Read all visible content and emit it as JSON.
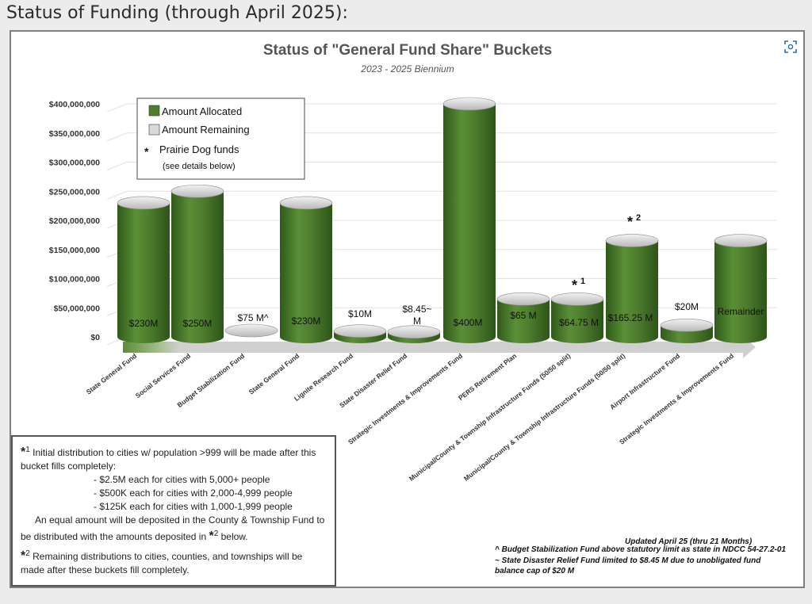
{
  "page": {
    "heading": "Status of Funding (through April 2025):"
  },
  "chart_data": {
    "type": "bar",
    "title": "Status of \"General Fund Share\" Buckets",
    "subtitle": "2023 - 2025 Biennium",
    "ylim": [
      0,
      400000000
    ],
    "yticks": [
      "$0",
      "$50,000,000",
      "$100,000,000",
      "$150,000,000",
      "$200,000,000",
      "$250,000,000",
      "$300,000,000",
      "$350,000,000",
      "$400,000,000"
    ],
    "grid": true,
    "legend_position": "top-left",
    "categories": [
      "State General Fund",
      "Social Services Fund",
      "Budget Stabilization Fund",
      "State General Fund",
      "Lignite Research Fund",
      "State Disaster Relief Fund",
      "Strategic Investments & Improvements Fund",
      "PERS Retirement Plan",
      "Municipal/County & Township Infrastructure Funds (50/50 split)",
      "Municipal/County & Township Infrastructure Funds (50/50 split)",
      "Airport Infrastructure Fund",
      "Strategic Investments & Improvements Fund"
    ],
    "series": [
      {
        "name": "Amount Allocated",
        "color": "#4e7d2e",
        "values": [
          230000000,
          250000000,
          0,
          230000000,
          10000000,
          8450000,
          400000000,
          65000000,
          64750000,
          165250000,
          20000000,
          165000000
        ]
      }
    ],
    "data_labels": [
      "$230M",
      "$250M",
      "$75 M^",
      "$230M",
      "$10M",
      "$8.45~\nM",
      "$400M",
      "$65 M",
      "$64.75 M",
      "$165.25 M",
      "$20M",
      "Remainder"
    ],
    "markers": [
      {
        "index": 8,
        "text": "*",
        "sup": "1"
      },
      {
        "index": 9,
        "text": "*",
        "sup": "2"
      }
    ],
    "legend": [
      {
        "label": "Amount Allocated",
        "color": "#4e7d2e"
      },
      {
        "label": "Amount Remaining",
        "color": "#d9d9d9"
      },
      {
        "label": "Prairie Dog funds",
        "symbol": "*",
        "note": "(see details below)"
      }
    ]
  },
  "footnotes": {
    "n1_intro": "Initial distribution to cities w/ population >999 will be made after this bucket fills completely:",
    "n1_bullets": [
      "- $2.5M each for cities with 5,000+ people",
      "- $500K each for cities with 2,000-4,999 people",
      "- $125K each for cities with 1,000-1,999 people"
    ],
    "n1_para_a": "An equal amount will be deposited in the County & Township Fund to be distributed with the amounts deposited in ",
    "n1_para_b": " below.",
    "n2_text": "Remaining distributions to cities, counties, and townships will be made after these buckets fill completely.",
    "star": "*",
    "sup1": "1",
    "sup2": "2"
  },
  "notes": {
    "updated": "Updated April 25 (thru 21 Months)",
    "caret_note": "^ Budget Stabilization Fund above statutory limit as state in NDCC 54-27.2-01",
    "tilde_note": "~ State Disaster Relief Fund limited to $8.45 M due to unobligated fund balance cap of $20 M"
  },
  "icons": {
    "expand": "expand-icon"
  }
}
